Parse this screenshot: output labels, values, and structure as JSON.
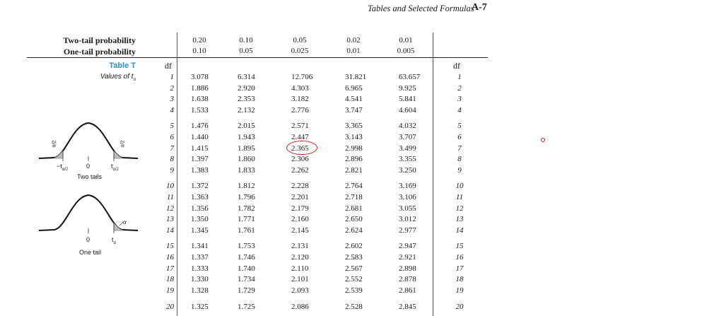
{
  "header": {
    "text": "Tables and Selected Formulas",
    "page_number": "A-7"
  },
  "probabilities": {
    "two_tail_label": "Two-tail probability",
    "one_tail_label": "One-tail probability",
    "two_tail": [
      "0.20",
      "0.10",
      "0.05",
      "0.02",
      "0.01"
    ],
    "one_tail": [
      "0.10",
      "0.05",
      "0.025",
      "0.01",
      "0.005"
    ]
  },
  "table": {
    "title": "Table T",
    "subtitle": "Values of t",
    "subtitle_sub": "α",
    "df_label": "df",
    "rows": [
      {
        "df": "1",
        "values": [
          "3.078",
          "6.314",
          "12.706",
          "31.821",
          "63.657"
        ]
      },
      {
        "df": "2",
        "values": [
          "1.886",
          "2.920",
          "4.303",
          "6.965",
          "9.925"
        ]
      },
      {
        "df": "3",
        "values": [
          "1.638",
          "2.353",
          "3.182",
          "4.541",
          "5.841"
        ]
      },
      {
        "df": "4",
        "values": [
          "1.533",
          "2.132",
          "2.776",
          "3.747",
          "4.604"
        ]
      },
      {
        "df": "5",
        "values": [
          "1.476",
          "2.015",
          "2.571",
          "3.365",
          "4.032"
        ]
      },
      {
        "df": "6",
        "values": [
          "1.440",
          "1.943",
          "2.447",
          "3.143",
          "3.707"
        ]
      },
      {
        "df": "7",
        "values": [
          "1.415",
          "1.895",
          "2.365",
          "2.998",
          "3.499"
        ]
      },
      {
        "df": "8",
        "values": [
          "1.397",
          "1.860",
          "2.306",
          "2.896",
          "3.355"
        ]
      },
      {
        "df": "9",
        "values": [
          "1.383",
          "1.833",
          "2.262",
          "2.821",
          "3.250"
        ]
      },
      {
        "df": "10",
        "values": [
          "1.372",
          "1.812",
          "2.228",
          "2.764",
          "3.169"
        ]
      },
      {
        "df": "11",
        "values": [
          "1.363",
          "1.796",
          "2.201",
          "2.718",
          "3.106"
        ]
      },
      {
        "df": "12",
        "values": [
          "1.356",
          "1.782",
          "2.179",
          "2.681",
          "3.055"
        ]
      },
      {
        "df": "13",
        "values": [
          "1.350",
          "1.771",
          "2.160",
          "2.650",
          "3.012"
        ]
      },
      {
        "df": "14",
        "values": [
          "1.345",
          "1.761",
          "2.145",
          "2.624",
          "2.977"
        ]
      },
      {
        "df": "15",
        "values": [
          "1.341",
          "1.753",
          "2.131",
          "2.602",
          "2.947"
        ]
      },
      {
        "df": "16",
        "values": [
          "1.337",
          "1.746",
          "2.120",
          "2.583",
          "2.921"
        ]
      },
      {
        "df": "17",
        "values": [
          "1.333",
          "1.740",
          "2.110",
          "2.567",
          "2.898"
        ]
      },
      {
        "df": "18",
        "values": [
          "1.330",
          "1.734",
          "2.101",
          "2.552",
          "2.878"
        ]
      },
      {
        "df": "19",
        "values": [
          "1.328",
          "1.729",
          "2.093",
          "2.539",
          "2.861"
        ]
      },
      {
        "df": "20",
        "values": [
          "1.325",
          "1.725",
          "2.086",
          "2.528",
          "2.845"
        ]
      }
    ],
    "highlighted_cell": {
      "df": "7",
      "column": 2
    }
  },
  "diagrams": {
    "two_tail": {
      "caption": "Two tails",
      "area_label": "α/2",
      "tick_left": "−t",
      "tick_left_sub": "α/2",
      "tick_center": "0",
      "tick_right": "t",
      "tick_right_sub": "α/2"
    },
    "one_tail": {
      "caption": "One tail",
      "area_label": "α",
      "tick_center": "0",
      "tick_right": "t",
      "tick_right_sub": "α"
    }
  },
  "colors": {
    "title_blue": "#2a8fd0",
    "annotation_red": "#d02020"
  }
}
